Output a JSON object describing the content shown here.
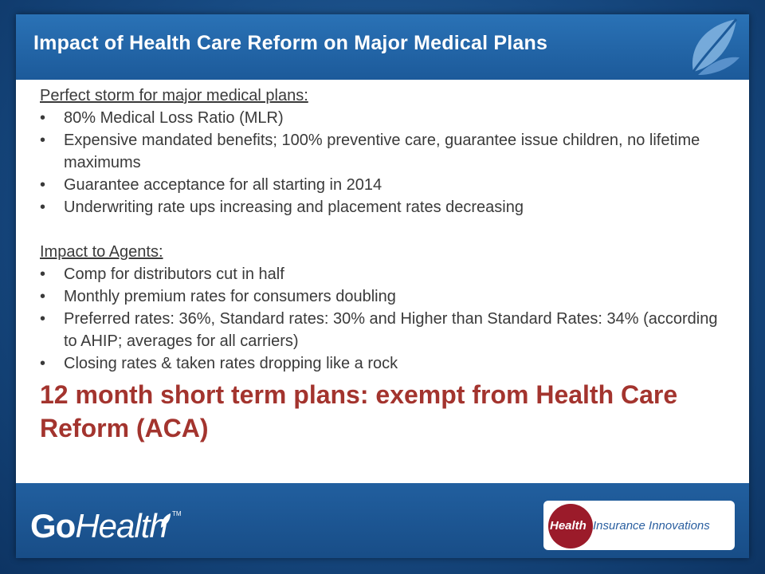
{
  "slide": {
    "title": "Impact of Health Care Reform on Major Medical Plans"
  },
  "section1": {
    "heading": "Perfect storm for major medical plans:",
    "items": [
      "80% Medical Loss Ratio (MLR)",
      "Expensive mandated benefits; 100% preventive care, guarantee issue children, no lifetime maximums",
      "Guarantee acceptance for all starting in 2014",
      "Underwriting rate ups increasing and placement rates decreasing"
    ]
  },
  "section2": {
    "heading": "Impact to Agents:",
    "items": [
      "Comp for distributors cut in half",
      "Monthly premium rates for consumers doubling",
      "Preferred rates: 36%, Standard rates: 30% and Higher than Standard Rates: 34% (according to AHIP; averages for all carriers)",
      "Closing rates & taken rates dropping like a rock"
    ]
  },
  "highlight": "12 month short term plans: exempt from Health Care Reform (ACA)",
  "bullet_char": "•",
  "footer": {
    "gohealth_go": "Go",
    "gohealth_health": "Health",
    "gohealth_tm": "TM",
    "hii_health": "Health",
    "hii_rest": "Insurance Innovations"
  },
  "colors": {
    "background": "#174a82",
    "title_bar": "#2a72b6",
    "highlight": "#a3342e",
    "hii_circle": "#9b1b2a"
  },
  "icons": {
    "title_logo": "leaf-icon",
    "gohealth_logo": "leaf-icon"
  }
}
